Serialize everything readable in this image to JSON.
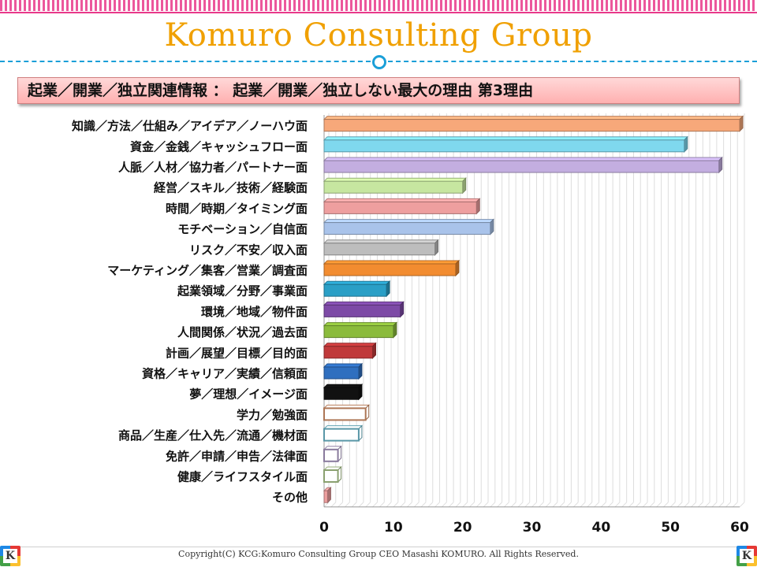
{
  "header": {
    "brand": "Komuro Consulting Group",
    "subtitle": "起業／開業／独立関連情報 ： 起業／開業／独立しない最大の理由 第3理由"
  },
  "footer": {
    "copyright": "Copyright(C) KCG:Komuro Consulting Group CEO Masashi KOMURO. All Rights Reserved.",
    "logo_letter": "K"
  },
  "chart_data": {
    "type": "bar",
    "orientation": "horizontal",
    "categories": [
      "知識／方法／仕組み／アイデア／ノーハウ面",
      "資金／金銭／キャッシュフロー面",
      "人脈／人材／協力者／パートナー面",
      "経営／スキル／技術／経験面",
      "時間／時期／タイミング面",
      "モチベーション／自信面",
      "リスク／不安／収入面",
      "マーケティング／集客／営業／調査面",
      "起業領域／分野／事業面",
      "環境／地域／物件面",
      "人間関係／状況／過去面",
      "計画／展望／目標／目的面",
      "資格／キャリア／実績／信頼面",
      "夢／理想／イメージ面",
      "学力／勉強面",
      "商品／生産／仕入先／流通／機材面",
      "免許／申請／申告／法律面",
      "健康／ライフスタイル面",
      "その他"
    ],
    "values": [
      60,
      52,
      57,
      20,
      22,
      24,
      16,
      19,
      9,
      11,
      10,
      7,
      5,
      5,
      6,
      5,
      2,
      2,
      0.5
    ],
    "colors": [
      "#f7a87a",
      "#7fd8ee",
      "#c3aee0",
      "#c6e6a0",
      "#ee9f9f",
      "#a9c3ea",
      "#bdbdbd",
      "#f28c30",
      "#2a9fc6",
      "#7d4aa6",
      "#8bbb3c",
      "#c0393a",
      "#2f6fbf",
      "#111111",
      "#f7a87a",
      "#7fd8ee",
      "#c3aee0",
      "#c6e6a0",
      "#ee9f9f"
    ],
    "outline_only": [
      false,
      false,
      false,
      false,
      false,
      false,
      false,
      false,
      false,
      false,
      false,
      false,
      false,
      false,
      true,
      true,
      true,
      true,
      false
    ],
    "xlim": [
      0,
      60
    ],
    "xticks": [
      "0",
      "10",
      "20",
      "30",
      "40",
      "50",
      "60"
    ],
    "grid": true
  }
}
